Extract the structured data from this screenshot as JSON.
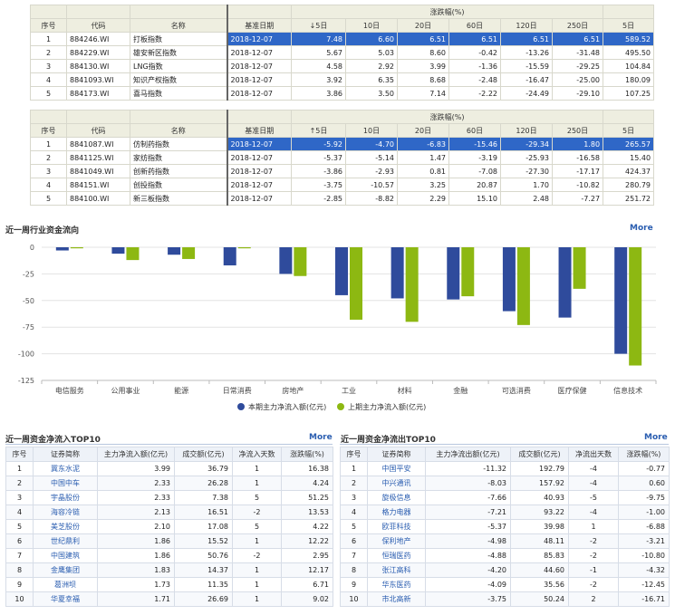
{
  "table1": {
    "headers": {
      "rank": "序号",
      "code": "代码",
      "name": "名称",
      "base_date": "基准日期",
      "change_group": "涨跌幅(%)",
      "d5": "↓5日",
      "d10": "10日",
      "d20": "20日",
      "d60": "60日",
      "d120": "120日",
      "d250": "250日",
      "d5b": "5日"
    },
    "rows": [
      {
        "rank": "1",
        "code": "884246.WI",
        "name": "打板指数",
        "date": "2018-12-07",
        "d5": "7.48",
        "d10": "6.60",
        "d20": "6.51",
        "d60": "6.51",
        "d120": "6.51",
        "d250": "6.51",
        "d5b": "589.52"
      },
      {
        "rank": "2",
        "code": "884229.WI",
        "name": "雄安新区指数",
        "date": "2018-12-07",
        "d5": "5.67",
        "d10": "5.03",
        "d20": "8.60",
        "d60": "-0.42",
        "d120": "-13.26",
        "d250": "-31.48",
        "d5b": "495.50"
      },
      {
        "rank": "3",
        "code": "884130.WI",
        "name": "LNG指数",
        "date": "2018-12-07",
        "d5": "4.58",
        "d10": "2.92",
        "d20": "3.99",
        "d60": "-1.36",
        "d120": "-15.59",
        "d250": "-29.25",
        "d5b": "104.84"
      },
      {
        "rank": "4",
        "code": "8841093.WI",
        "name": "知识产权指数",
        "date": "2018-12-07",
        "d5": "3.92",
        "d10": "6.35",
        "d20": "8.68",
        "d60": "-2.48",
        "d120": "-16.47",
        "d250": "-25.00",
        "d5b": "180.09"
      },
      {
        "rank": "5",
        "code": "884173.WI",
        "name": "喜马指数",
        "date": "2018-12-07",
        "d5": "3.86",
        "d10": "3.50",
        "d20": "7.14",
        "d60": "-2.22",
        "d120": "-24.49",
        "d250": "-29.10",
        "d5b": "107.25"
      }
    ]
  },
  "table2": {
    "headers": {
      "rank": "序号",
      "code": "代码",
      "name": "名称",
      "base_date": "基准日期",
      "change_group": "涨跌幅(%)",
      "d5": "↑5日",
      "d10": "10日",
      "d20": "20日",
      "d60": "60日",
      "d120": "120日",
      "d250": "250日",
      "d5b": "5日"
    },
    "rows": [
      {
        "rank": "1",
        "code": "8841087.WI",
        "name": "仿制药指数",
        "date": "2018-12-07",
        "d5": "-5.92",
        "d10": "-4.70",
        "d20": "-6.83",
        "d60": "-15.46",
        "d120": "-29.34",
        "d250": "1.80",
        "d5b": "265.57"
      },
      {
        "rank": "2",
        "code": "8841125.WI",
        "name": "家纺指数",
        "date": "2018-12-07",
        "d5": "-5.37",
        "d10": "-5.14",
        "d20": "1.47",
        "d60": "-3.19",
        "d120": "-25.93",
        "d250": "-16.58",
        "d5b": "15.40"
      },
      {
        "rank": "3",
        "code": "8841049.WI",
        "name": "创新药指数",
        "date": "2018-12-07",
        "d5": "-3.86",
        "d10": "-2.93",
        "d20": "0.81",
        "d60": "-7.08",
        "d120": "-27.30",
        "d250": "-17.17",
        "d5b": "424.37"
      },
      {
        "rank": "4",
        "code": "884151.WI",
        "name": "创投指数",
        "date": "2018-12-07",
        "d5": "-3.75",
        "d10": "-10.57",
        "d20": "3.25",
        "d60": "20.87",
        "d120": "1.70",
        "d250": "-10.82",
        "d5b": "280.79"
      },
      {
        "rank": "5",
        "code": "884100.WI",
        "name": "新三板指数",
        "date": "2018-12-07",
        "d5": "-2.85",
        "d10": "-8.82",
        "d20": "2.29",
        "d60": "15.10",
        "d120": "2.48",
        "d250": "-7.27",
        "d5b": "251.72"
      }
    ]
  },
  "flow_section": {
    "title": "近一周行业资金流向",
    "more": "More"
  },
  "chart_data": {
    "type": "bar",
    "categories": [
      "电信服务",
      "公用事业",
      "能源",
      "日常消费",
      "房地产",
      "工业",
      "材料",
      "金融",
      "可选消费",
      "医疗保健",
      "信息技术"
    ],
    "series": [
      {
        "name": "本期主力净流入额(亿元)",
        "color": "#2f4b9c",
        "values": [
          -3,
          -6,
          -7,
          -17,
          -25,
          -45,
          -48,
          -49,
          -60,
          -66,
          -100
        ]
      },
      {
        "name": "上期主力净流入额(亿元)",
        "color": "#8db812",
        "values": [
          -1,
          -12,
          -11,
          -1,
          -27,
          -68,
          -70,
          -46,
          -73,
          -39,
          -111
        ]
      }
    ],
    "yticks": [
      "0",
      "-25",
      "-50",
      "-75",
      "-100",
      "-125"
    ],
    "ylim": [
      -125,
      0
    ],
    "grid": true,
    "legend_position": "bottom-center"
  },
  "inflow": {
    "title": "近一周资金净流入TOP10",
    "more": "More",
    "headers": [
      "序号",
      "证券简称",
      "主力净流入额(亿元)",
      "成交额(亿元)",
      "净流入天数",
      "涨跌幅(%)"
    ],
    "rows": [
      [
        "1",
        "冀东水泥",
        "3.99",
        "36.79",
        "1",
        "16.38"
      ],
      [
        "2",
        "中国中车",
        "2.33",
        "26.28",
        "1",
        "4.24"
      ],
      [
        "3",
        "宇晶股份",
        "2.33",
        "7.38",
        "5",
        "51.25"
      ],
      [
        "4",
        "海容冷链",
        "2.13",
        "16.51",
        "-2",
        "13.53"
      ],
      [
        "5",
        "美芝股份",
        "2.10",
        "17.08",
        "5",
        "4.22"
      ],
      [
        "6",
        "世纪鼎利",
        "1.86",
        "15.52",
        "1",
        "12.22"
      ],
      [
        "7",
        "中国建筑",
        "1.86",
        "50.76",
        "-2",
        "2.95"
      ],
      [
        "8",
        "金鹰集团",
        "1.83",
        "14.37",
        "1",
        "12.17"
      ],
      [
        "9",
        "葛洲坝",
        "1.73",
        "11.35",
        "1",
        "6.71"
      ],
      [
        "10",
        "华夏幸福",
        "1.71",
        "26.69",
        "1",
        "9.02"
      ]
    ]
  },
  "outflow": {
    "title": "近一周资金净流出TOP10",
    "more": "More",
    "headers": [
      "序号",
      "证券简称",
      "主力净流出额(亿元)",
      "成交额(亿元)",
      "净流出天数",
      "涨跌幅(%)"
    ],
    "rows": [
      [
        "1",
        "中国平安",
        "-11.32",
        "192.79",
        "-4",
        "-0.77"
      ],
      [
        "2",
        "中兴通讯",
        "-8.03",
        "157.92",
        "-4",
        "0.60"
      ],
      [
        "3",
        "旋极信息",
        "-7.66",
        "40.93",
        "-5",
        "-9.75"
      ],
      [
        "4",
        "格力电器",
        "-7.21",
        "93.22",
        "-4",
        "-1.00"
      ],
      [
        "5",
        "欧菲科技",
        "-5.37",
        "39.98",
        "1",
        "-6.88"
      ],
      [
        "6",
        "保利地产",
        "-4.98",
        "48.11",
        "-2",
        "-3.21"
      ],
      [
        "7",
        "恒瑞医药",
        "-4.88",
        "85.83",
        "-2",
        "-10.80"
      ],
      [
        "8",
        "张江高科",
        "-4.20",
        "44.60",
        "-1",
        "-4.32"
      ],
      [
        "9",
        "华东医药",
        "-4.09",
        "35.56",
        "-2",
        "-12.45"
      ],
      [
        "10",
        "市北高新",
        "-3.75",
        "50.24",
        "2",
        "-16.71"
      ]
    ]
  }
}
